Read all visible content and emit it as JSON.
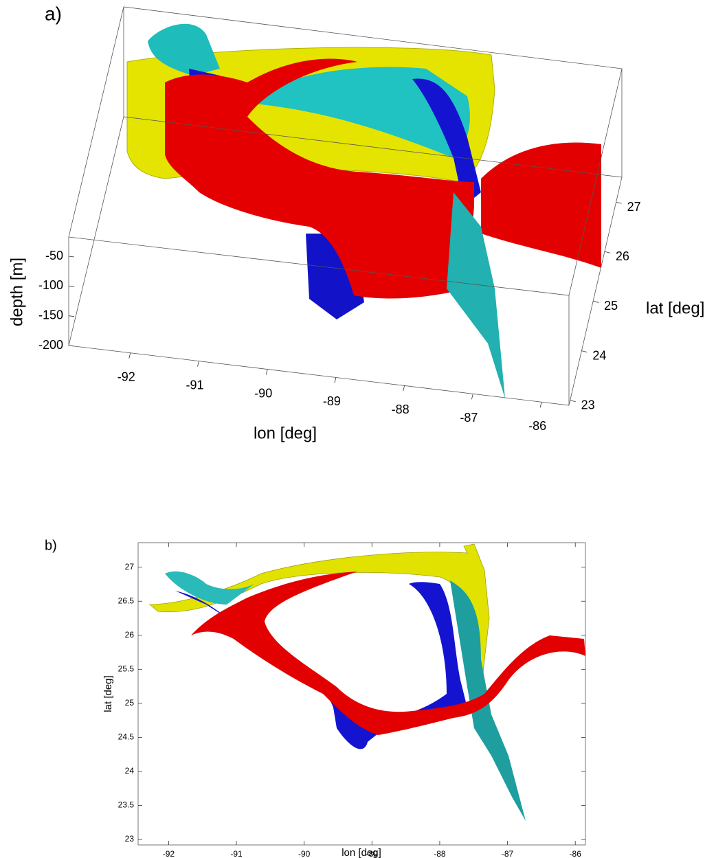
{
  "chart_data": [
    {
      "type": "surface3d",
      "label": "a)",
      "xlabel": "lon [deg]",
      "ylabel": "lat [deg]",
      "zlabel": "depth [m]",
      "xlim": [
        -92.9,
        -85.6
      ],
      "xticks": [
        -92,
        -91,
        -90,
        -89,
        -88,
        -87,
        -86
      ],
      "ylim": [
        22.9,
        27.5
      ],
      "yticks": [
        23,
        24,
        25,
        26,
        27
      ],
      "zlim": [
        -200,
        -20
      ],
      "zticks": [
        -50,
        -100,
        -150,
        -200
      ]
    },
    {
      "type": "surface",
      "label": "b)",
      "xlabel": "lon [deg]",
      "ylabel": "lat [deg]",
      "xlim": [
        -92.45,
        -85.85
      ],
      "xticks": [
        -92,
        -91,
        -90,
        -89,
        -88,
        -87,
        -86
      ],
      "ylim": [
        22.92,
        27.36
      ],
      "yticks": [
        23,
        23.5,
        24,
        24.5,
        25,
        25.5,
        26,
        26.5,
        27
      ]
    }
  ]
}
